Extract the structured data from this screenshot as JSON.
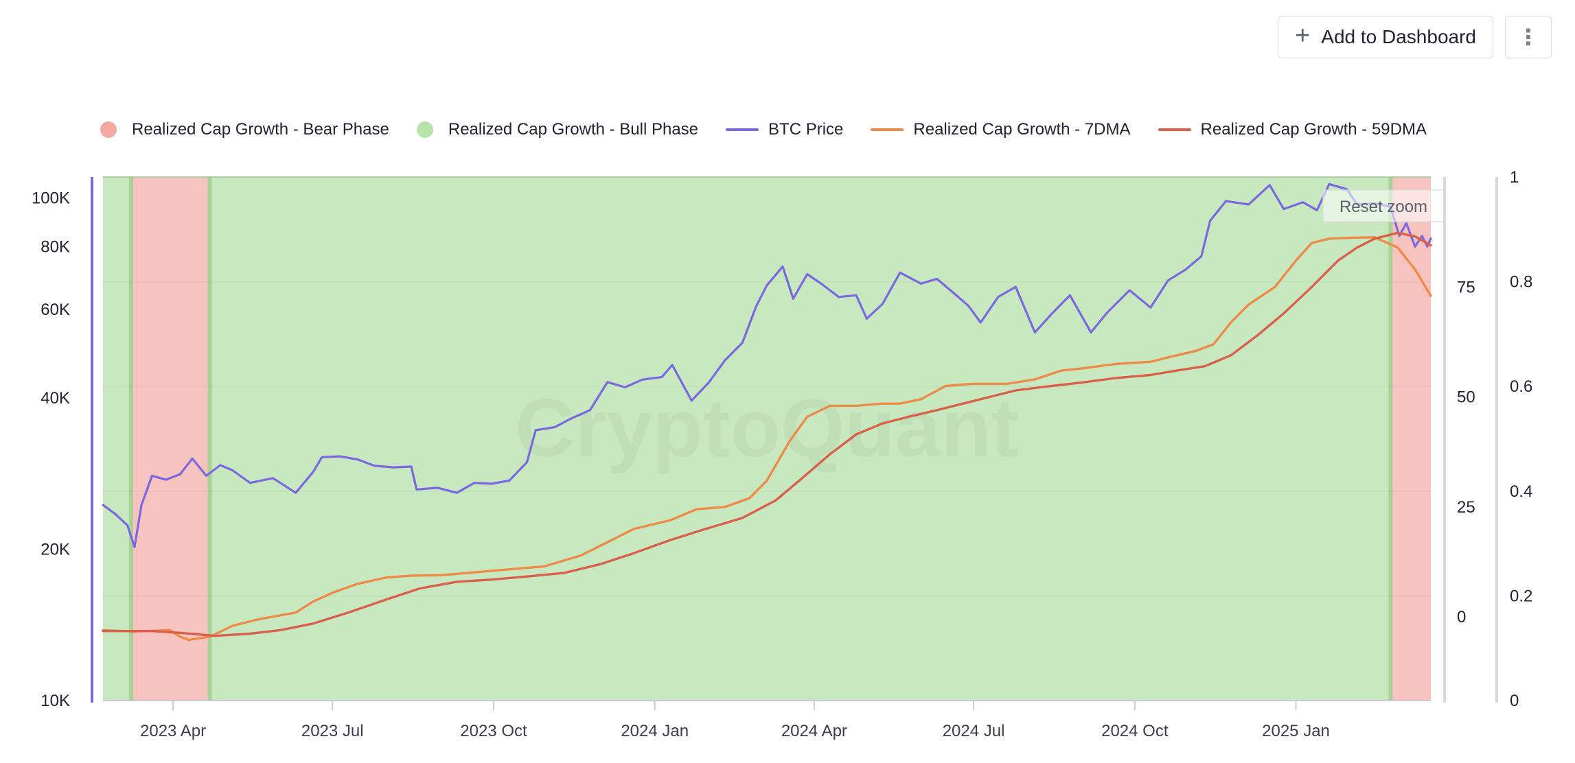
{
  "toolbar": {
    "add_label": "Add to Dashboard",
    "plus_glyph": "+",
    "more_glyph": "⋮"
  },
  "legend": [
    {
      "label": "Realized Cap Growth - Bear Phase",
      "kind": "dot",
      "color": "#f4a9a3"
    },
    {
      "label": "Realized Cap Growth - Bull Phase",
      "kind": "dot",
      "color": "#b5e3a8"
    },
    {
      "label": "BTC Price",
      "kind": "line",
      "color": "#7b68e0"
    },
    {
      "label": "Realized Cap Growth - 7DMA",
      "kind": "line",
      "color": "#ec8b4a"
    },
    {
      "label": "Realized Cap Growth - 59DMA",
      "kind": "line",
      "color": "#d9604a"
    }
  ],
  "watermark": "CryptoQuant",
  "reset_zoom_label": "Reset zoom",
  "chart_data": {
    "type": "line",
    "x_range": [
      "2023-02-20",
      "2025-03-19"
    ],
    "x_ticks": [
      {
        "label": "2023 Apr",
        "date": "2023-04-01"
      },
      {
        "label": "2023 Jul",
        "date": "2023-07-01"
      },
      {
        "label": "2023 Oct",
        "date": "2023-10-01"
      },
      {
        "label": "2024 Jan",
        "date": "2024-01-01"
      },
      {
        "label": "2024 Apr",
        "date": "2024-04-01"
      },
      {
        "label": "2024 Jul",
        "date": "2024-07-01"
      },
      {
        "label": "2024 Oct",
        "date": "2024-10-01"
      },
      {
        "label": "2025 Jan",
        "date": "2025-01-01"
      }
    ],
    "y_left": {
      "scale": "log",
      "range": [
        10000,
        110000
      ],
      "ticks": [
        {
          "label": "10K",
          "value": 10000
        },
        {
          "label": "20K",
          "value": 20000
        },
        {
          "label": "40K",
          "value": 40000
        },
        {
          "label": "60K",
          "value": 60000
        },
        {
          "label": "80K",
          "value": 80000
        },
        {
          "label": "100K",
          "value": 100000
        }
      ]
    },
    "y_mid": {
      "range": [
        -19,
        100
      ],
      "ticks": [
        {
          "label": "0",
          "value": 0
        },
        {
          "label": "25",
          "value": 25
        },
        {
          "label": "50",
          "value": 50
        },
        {
          "label": "75",
          "value": 75
        }
      ]
    },
    "y_right": {
      "range": [
        0,
        1
      ],
      "ticks": [
        {
          "label": "0",
          "value": 0
        },
        {
          "label": "0.2",
          "value": 0.2
        },
        {
          "label": "0.4",
          "value": 0.4
        },
        {
          "label": "0.6",
          "value": 0.6
        },
        {
          "label": "0.8",
          "value": 0.8
        },
        {
          "label": "1",
          "value": 1
        }
      ]
    },
    "phases": [
      {
        "type": "bull",
        "start": "2023-02-20",
        "end": "2023-03-08"
      },
      {
        "type": "bear",
        "start": "2023-03-08",
        "end": "2023-04-22"
      },
      {
        "type": "bull",
        "start": "2023-04-22",
        "end": "2025-02-24"
      },
      {
        "type": "bear",
        "start": "2025-02-24",
        "end": "2025-03-19"
      }
    ],
    "series": [
      {
        "name": "BTC Price",
        "axis": "left",
        "color": "#7b68e0",
        "points": [
          [
            "2023-02-20",
            24500
          ],
          [
            "2023-02-27",
            23500
          ],
          [
            "2023-03-06",
            22300
          ],
          [
            "2023-03-10",
            20200
          ],
          [
            "2023-03-14",
            24500
          ],
          [
            "2023-03-20",
            28000
          ],
          [
            "2023-03-28",
            27500
          ],
          [
            "2023-04-05",
            28200
          ],
          [
            "2023-04-12",
            30300
          ],
          [
            "2023-04-20",
            28000
          ],
          [
            "2023-04-28",
            29400
          ],
          [
            "2023-05-05",
            28700
          ],
          [
            "2023-05-15",
            27100
          ],
          [
            "2023-05-28",
            27700
          ],
          [
            "2023-06-10",
            25900
          ],
          [
            "2023-06-20",
            28500
          ],
          [
            "2023-06-25",
            30500
          ],
          [
            "2023-07-05",
            30600
          ],
          [
            "2023-07-15",
            30200
          ],
          [
            "2023-07-25",
            29300
          ],
          [
            "2023-08-05",
            29100
          ],
          [
            "2023-08-15",
            29200
          ],
          [
            "2023-08-18",
            26300
          ],
          [
            "2023-08-30",
            26500
          ],
          [
            "2023-09-10",
            25900
          ],
          [
            "2023-09-20",
            27100
          ],
          [
            "2023-09-30",
            27000
          ],
          [
            "2023-10-10",
            27400
          ],
          [
            "2023-10-20",
            29800
          ],
          [
            "2023-10-25",
            34500
          ],
          [
            "2023-11-05",
            35000
          ],
          [
            "2023-11-15",
            36500
          ],
          [
            "2023-11-25",
            37800
          ],
          [
            "2023-12-05",
            43000
          ],
          [
            "2023-12-15",
            42000
          ],
          [
            "2023-12-25",
            43500
          ],
          [
            "2024-01-05",
            44000
          ],
          [
            "2024-01-11",
            46500
          ],
          [
            "2024-01-22",
            39500
          ],
          [
            "2024-02-01",
            43000
          ],
          [
            "2024-02-10",
            47500
          ],
          [
            "2024-02-20",
            51500
          ],
          [
            "2024-02-28",
            61000
          ],
          [
            "2024-03-05",
            67000
          ],
          [
            "2024-03-14",
            73000
          ],
          [
            "2024-03-20",
            63000
          ],
          [
            "2024-03-28",
            70500
          ],
          [
            "2024-04-05",
            67500
          ],
          [
            "2024-04-15",
            63500
          ],
          [
            "2024-04-25",
            64000
          ],
          [
            "2024-05-01",
            57500
          ],
          [
            "2024-05-10",
            61500
          ],
          [
            "2024-05-20",
            71000
          ],
          [
            "2024-06-01",
            67500
          ],
          [
            "2024-06-10",
            69000
          ],
          [
            "2024-06-20",
            64500
          ],
          [
            "2024-06-28",
            61000
          ],
          [
            "2024-07-05",
            56500
          ],
          [
            "2024-07-15",
            63500
          ],
          [
            "2024-07-25",
            66500
          ],
          [
            "2024-08-05",
            54000
          ],
          [
            "2024-08-15",
            59000
          ],
          [
            "2024-08-25",
            64000
          ],
          [
            "2024-09-06",
            54000
          ],
          [
            "2024-09-15",
            59000
          ],
          [
            "2024-09-28",
            65500
          ],
          [
            "2024-10-10",
            60500
          ],
          [
            "2024-10-20",
            68500
          ],
          [
            "2024-10-30",
            72000
          ],
          [
            "2024-11-08",
            76500
          ],
          [
            "2024-11-13",
            90000
          ],
          [
            "2024-11-22",
            98500
          ],
          [
            "2024-12-05",
            97000
          ],
          [
            "2024-12-17",
            106000
          ],
          [
            "2024-12-25",
            95000
          ],
          [
            "2025-01-05",
            98000
          ],
          [
            "2025-01-13",
            94500
          ],
          [
            "2025-01-20",
            106500
          ],
          [
            "2025-01-30",
            104000
          ],
          [
            "2025-02-05",
            97000
          ],
          [
            "2025-02-15",
            97500
          ],
          [
            "2025-02-24",
            96000
          ],
          [
            "2025-03-01",
            84000
          ],
          [
            "2025-03-05",
            89000
          ],
          [
            "2025-03-10",
            80000
          ],
          [
            "2025-03-14",
            84000
          ],
          [
            "2025-03-17",
            80000
          ],
          [
            "2025-03-19",
            83000
          ]
        ]
      },
      {
        "name": "Realized Cap Growth - 7DMA",
        "axis": "mid",
        "color": "#ec8b4a",
        "points": [
          [
            "2023-02-20",
            -3
          ],
          [
            "2023-03-10",
            -3.3
          ],
          [
            "2023-03-30",
            -3
          ],
          [
            "2023-04-05",
            -4.5
          ],
          [
            "2023-04-10",
            -5.2
          ],
          [
            "2023-04-22",
            -4.5
          ],
          [
            "2023-05-05",
            -2
          ],
          [
            "2023-05-20",
            -0.5
          ],
          [
            "2023-06-10",
            1
          ],
          [
            "2023-06-20",
            3.5
          ],
          [
            "2023-07-01",
            5.5
          ],
          [
            "2023-07-15",
            7.5
          ],
          [
            "2023-08-01",
            9
          ],
          [
            "2023-08-15",
            9.4
          ],
          [
            "2023-09-01",
            9.5
          ],
          [
            "2023-09-30",
            10.5
          ],
          [
            "2023-10-30",
            11.5
          ],
          [
            "2023-11-20",
            14
          ],
          [
            "2023-12-05",
            17
          ],
          [
            "2023-12-20",
            20
          ],
          [
            "2024-01-10",
            22
          ],
          [
            "2024-01-25",
            24.5
          ],
          [
            "2024-02-10",
            25
          ],
          [
            "2024-02-24",
            27
          ],
          [
            "2024-03-05",
            31
          ],
          [
            "2024-03-18",
            40
          ],
          [
            "2024-03-28",
            45.5
          ],
          [
            "2024-04-10",
            48
          ],
          [
            "2024-04-25",
            48
          ],
          [
            "2024-05-10",
            48.5
          ],
          [
            "2024-05-20",
            48.5
          ],
          [
            "2024-06-01",
            49.5
          ],
          [
            "2024-06-15",
            52.5
          ],
          [
            "2024-06-30",
            53
          ],
          [
            "2024-07-20",
            53
          ],
          [
            "2024-08-05",
            54
          ],
          [
            "2024-08-20",
            56
          ],
          [
            "2024-09-01",
            56.5
          ],
          [
            "2024-09-20",
            57.5
          ],
          [
            "2024-10-10",
            58
          ],
          [
            "2024-10-20",
            59
          ],
          [
            "2024-11-05",
            60.5
          ],
          [
            "2024-11-15",
            62
          ],
          [
            "2024-11-25",
            67
          ],
          [
            "2024-12-05",
            71
          ],
          [
            "2024-12-20",
            75
          ],
          [
            "2025-01-01",
            81
          ],
          [
            "2025-01-10",
            85
          ],
          [
            "2025-01-20",
            86
          ],
          [
            "2025-02-01",
            86.2
          ],
          [
            "2025-02-15",
            86.3
          ],
          [
            "2025-02-28",
            84
          ],
          [
            "2025-03-10",
            79
          ],
          [
            "2025-03-19",
            73
          ]
        ]
      },
      {
        "name": "Realized Cap Growth - 59DMA",
        "axis": "mid",
        "color": "#d9604a",
        "points": [
          [
            "2023-02-20",
            -3.2
          ],
          [
            "2023-03-20",
            -3.2
          ],
          [
            "2023-04-05",
            -3.6
          ],
          [
            "2023-04-25",
            -4.3
          ],
          [
            "2023-05-15",
            -3.8
          ],
          [
            "2023-06-01",
            -3
          ],
          [
            "2023-06-20",
            -1.5
          ],
          [
            "2023-07-10",
            1
          ],
          [
            "2023-08-01",
            4
          ],
          [
            "2023-08-20",
            6.5
          ],
          [
            "2023-09-10",
            8
          ],
          [
            "2023-09-30",
            8.5
          ],
          [
            "2023-10-20",
            9.2
          ],
          [
            "2023-11-10",
            10
          ],
          [
            "2023-12-01",
            12
          ],
          [
            "2023-12-20",
            14.5
          ],
          [
            "2024-01-10",
            17.5
          ],
          [
            "2024-01-30",
            20
          ],
          [
            "2024-02-20",
            22.5
          ],
          [
            "2024-03-10",
            26.5
          ],
          [
            "2024-03-25",
            31.5
          ],
          [
            "2024-04-10",
            37
          ],
          [
            "2024-04-25",
            41.5
          ],
          [
            "2024-05-10",
            44
          ],
          [
            "2024-05-25",
            45.5
          ],
          [
            "2024-06-10",
            47
          ],
          [
            "2024-06-25",
            48.5
          ],
          [
            "2024-07-10",
            50
          ],
          [
            "2024-07-25",
            51.5
          ],
          [
            "2024-08-10",
            52.3
          ],
          [
            "2024-09-01",
            53.3
          ],
          [
            "2024-09-20",
            54.3
          ],
          [
            "2024-10-10",
            55
          ],
          [
            "2024-10-25",
            56
          ],
          [
            "2024-11-10",
            57
          ],
          [
            "2024-11-25",
            59.5
          ],
          [
            "2024-12-10",
            64
          ],
          [
            "2024-12-25",
            69
          ],
          [
            "2025-01-10",
            75
          ],
          [
            "2025-01-25",
            81
          ],
          [
            "2025-02-05",
            84
          ],
          [
            "2025-02-15",
            86
          ],
          [
            "2025-02-28",
            87.3
          ],
          [
            "2025-03-10",
            86.5
          ],
          [
            "2025-03-19",
            84.5
          ]
        ]
      }
    ]
  }
}
